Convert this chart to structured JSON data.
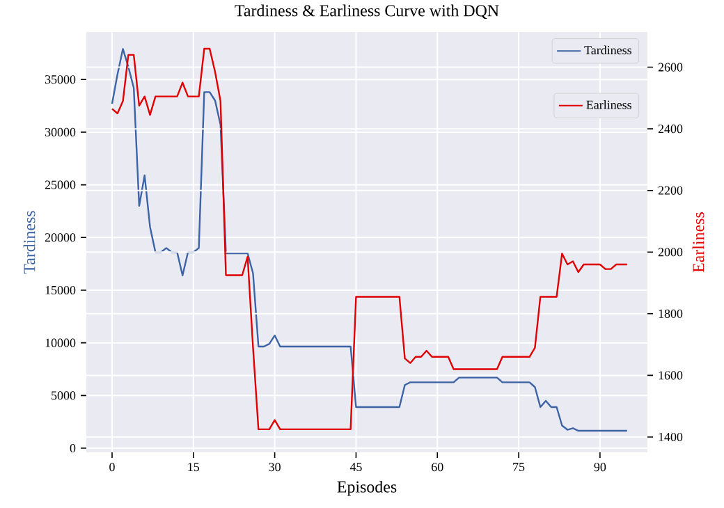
{
  "chart_data": {
    "type": "line",
    "title": "Tardiness & Earliness Curve with DQN",
    "xlabel": "Episodes",
    "ylabel": "Tardiness",
    "y2label": "Earliness",
    "x": [
      0,
      1,
      2,
      3,
      4,
      5,
      6,
      7,
      8,
      9,
      10,
      11,
      12,
      13,
      14,
      15,
      16,
      17,
      18,
      19,
      20,
      21,
      22,
      23,
      24,
      25,
      26,
      27,
      28,
      29,
      30,
      31,
      32,
      33,
      34,
      35,
      36,
      37,
      38,
      39,
      40,
      41,
      42,
      43,
      44,
      45,
      46,
      47,
      48,
      49,
      50,
      51,
      52,
      53,
      54,
      55,
      56,
      57,
      58,
      59,
      60,
      61,
      62,
      63,
      64,
      65,
      66,
      67,
      68,
      69,
      70,
      71,
      72,
      73,
      74,
      75,
      76,
      77,
      78,
      79,
      80,
      81,
      82,
      83,
      84,
      85,
      86,
      87,
      88,
      89,
      90,
      91,
      92,
      93,
      94,
      95
    ],
    "series": [
      {
        "name": "Tardiness",
        "color": "#3b63a6",
        "values": [
          32700,
          35500,
          37900,
          36200,
          34200,
          23000,
          25900,
          21000,
          18600,
          18600,
          19000,
          18600,
          18600,
          16400,
          18600,
          18600,
          19000,
          33800,
          33800,
          33000,
          30700,
          18500,
          18500,
          18500,
          18500,
          18500,
          16600,
          9650,
          9650,
          9900,
          10700,
          9650,
          9650,
          9650,
          9650,
          9650,
          9650,
          9650,
          9650,
          9650,
          9650,
          9650,
          9650,
          9650,
          9650,
          3900,
          3900,
          3900,
          3900,
          3900,
          3900,
          3900,
          3900,
          3900,
          6000,
          6250,
          6250,
          6250,
          6250,
          6250,
          6250,
          6250,
          6250,
          6250,
          6700,
          6700,
          6700,
          6700,
          6700,
          6700,
          6700,
          6700,
          6250,
          6250,
          6250,
          6250,
          6250,
          6250,
          5800,
          3900,
          4500,
          3900,
          3900,
          2150,
          1750,
          1900,
          1650,
          1650,
          1650,
          1650,
          1650,
          1650,
          1650,
          1650,
          1650,
          1650
        ]
      },
      {
        "name": "Earliness",
        "color": "#e00000",
        "axis": "y2",
        "values": [
          2465,
          2450,
          2490,
          2640,
          2640,
          2475,
          2505,
          2445,
          2505,
          2505,
          2505,
          2505,
          2505,
          2550,
          2505,
          2505,
          2505,
          2660,
          2660,
          2585,
          2490,
          1925,
          1925,
          1925,
          1925,
          1985,
          1690,
          1425,
          1425,
          1425,
          1455,
          1425,
          1425,
          1425,
          1425,
          1425,
          1425,
          1425,
          1425,
          1425,
          1425,
          1425,
          1425,
          1425,
          1425,
          1855,
          1855,
          1855,
          1855,
          1855,
          1855,
          1855,
          1855,
          1855,
          1655,
          1640,
          1660,
          1660,
          1680,
          1660,
          1660,
          1660,
          1660,
          1620,
          1620,
          1620,
          1620,
          1620,
          1620,
          1620,
          1620,
          1620,
          1660,
          1660,
          1660,
          1660,
          1660,
          1660,
          1690,
          1855,
          1855,
          1855,
          1855,
          1995,
          1960,
          1970,
          1935,
          1960,
          1960,
          1960,
          1960,
          1945,
          1945,
          1960,
          1960,
          1960
        ]
      }
    ],
    "xlim": [
      -4.75,
      98.75
    ],
    "ylim": [
      -400,
      39500
    ],
    "y2lim": [
      1350,
      2714
    ],
    "xticks": [
      0,
      15,
      30,
      45,
      60,
      75,
      90
    ],
    "yticks": [
      0,
      5000,
      10000,
      15000,
      20000,
      25000,
      30000,
      35000
    ],
    "y2ticks": [
      1400,
      1600,
      1800,
      2000,
      2200,
      2400,
      2600
    ],
    "grid": true,
    "legend": "top right"
  }
}
